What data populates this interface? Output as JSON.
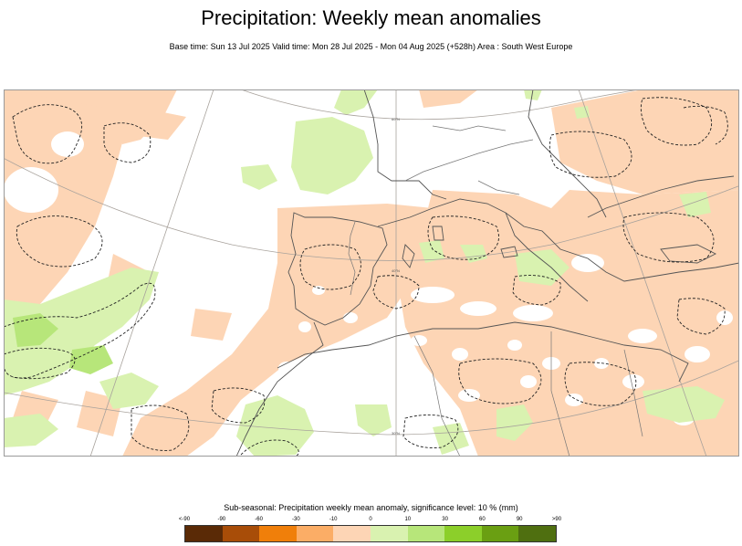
{
  "title": "Precipitation: Weekly mean anomalies",
  "subtitle": "Base time: Sun 13 Jul 2025 Valid time: Mon 28 Jul 2025 - Mon 04 Aug 2025 (+528h) Area : South West Europe",
  "map": {
    "colors": {
      "dry_weak": "#fdd5b5",
      "wet_weak": "#d9f2b0",
      "wet_mid": "#b7e67a",
      "coast": "#555555",
      "border": "#777777",
      "graticule": "#a8a29c",
      "frame": "#9a9a9a"
    },
    "graticule_labels": [
      "60°N",
      "40°N",
      "30°N",
      "20°N"
    ]
  },
  "legend": {
    "title": "Sub-seasonal: Precipitation weekly mean anomaly, significance level: 10 % (mm)",
    "ticks": [
      "<-90",
      "-90",
      "-60",
      "-30",
      "-10",
      "0",
      "10",
      "30",
      "60",
      "90",
      ">90"
    ],
    "colors": [
      "#5a2a06",
      "#a84d08",
      "#f07f0a",
      "#fbad66",
      "#fdd5b5",
      "#d9f2b0",
      "#b7e67a",
      "#8ccf2a",
      "#6a9f12",
      "#4f6f10"
    ]
  }
}
